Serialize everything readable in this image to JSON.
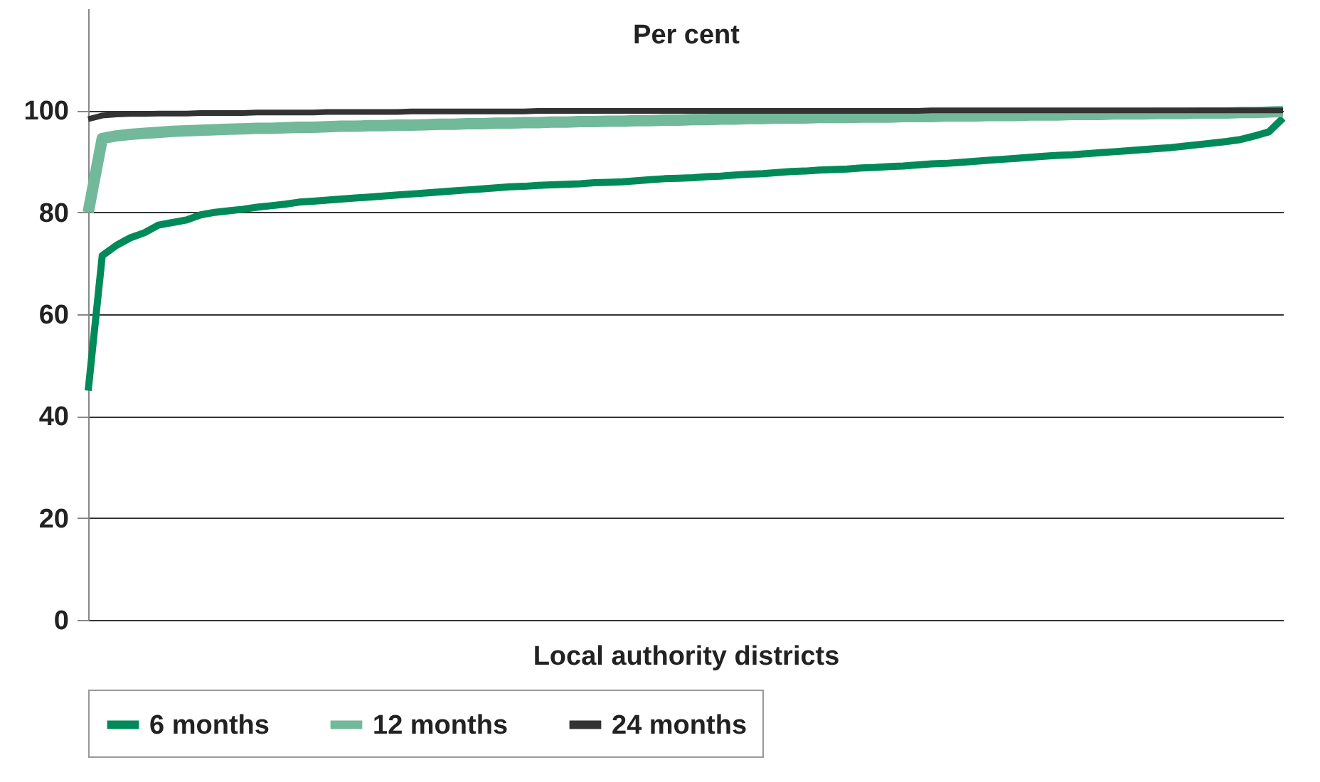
{
  "chart_data": {
    "type": "line",
    "ylabel": "Per cent",
    "xlabel": "Local authority districts",
    "categories": [
      null,
      null,
      null,
      null,
      null,
      null,
      null,
      null,
      null,
      null,
      null,
      null,
      null,
      null,
      null,
      null,
      null,
      null,
      null,
      null,
      null,
      null,
      null,
      null,
      null,
      null,
      null,
      null,
      null,
      null,
      null,
      null,
      null,
      null,
      null,
      null,
      null,
      null,
      null,
      null,
      null,
      null,
      null,
      null,
      null,
      null,
      null,
      null,
      null,
      null,
      null,
      null,
      null,
      null,
      null,
      null,
      null,
      null,
      null,
      null,
      null,
      null,
      null,
      null,
      null,
      null,
      null,
      null,
      null,
      null,
      null,
      null,
      null,
      null,
      null,
      null,
      null,
      null,
      null,
      null,
      null,
      null,
      null,
      null,
      null,
      null
    ],
    "series": [
      {
        "name": "6 months",
        "color": "#008a5a",
        "values": [
          45,
          71.5,
          73.5,
          75,
          76,
          77.5,
          78,
          78.5,
          79.5,
          80,
          80.3,
          80.6,
          81,
          81.3,
          81.6,
          82,
          82.2,
          82.4,
          82.6,
          82.8,
          83,
          83.2,
          83.4,
          83.6,
          83.8,
          84,
          84.2,
          84.4,
          84.6,
          84.8,
          85,
          85.1,
          85.3,
          85.4,
          85.5,
          85.6,
          85.8,
          85.9,
          86,
          86.2,
          86.4,
          86.6,
          86.7,
          86.8,
          87,
          87.1,
          87.3,
          87.5,
          87.6,
          87.8,
          88,
          88.1,
          88.3,
          88.4,
          88.5,
          88.7,
          88.8,
          89,
          89.1,
          89.3,
          89.5,
          89.6,
          89.8,
          90,
          90.2,
          90.4,
          90.6,
          90.8,
          91,
          91.2,
          91.3,
          91.5,
          91.7,
          91.9,
          92.1,
          92.3,
          92.5,
          92.7,
          93,
          93.3,
          93.6,
          93.9,
          94.3,
          95,
          95.8,
          98.5
        ]
      },
      {
        "name": "12 months",
        "color": "#72b89a",
        "values": [
          80,
          94.5,
          95,
          95.3,
          95.5,
          95.7,
          95.9,
          96,
          96.1,
          96.2,
          96.3,
          96.4,
          96.5,
          96.5,
          96.6,
          96.7,
          96.7,
          96.8,
          96.9,
          96.9,
          97,
          97,
          97.1,
          97.1,
          97.2,
          97.3,
          97.3,
          97.4,
          97.4,
          97.5,
          97.5,
          97.6,
          97.6,
          97.7,
          97.7,
          97.8,
          97.8,
          97.9,
          97.9,
          98,
          98,
          98.1,
          98.1,
          98.2,
          98.2,
          98.3,
          98.3,
          98.4,
          98.4,
          98.5,
          98.5,
          98.5,
          98.6,
          98.6,
          98.6,
          98.7,
          98.7,
          98.7,
          98.8,
          98.8,
          98.8,
          98.9,
          98.9,
          98.9,
          99,
          99,
          99,
          99.1,
          99.1,
          99.1,
          99.2,
          99.2,
          99.2,
          99.3,
          99.3,
          99.3,
          99.4,
          99.4,
          99.4,
          99.5,
          99.5,
          99.5,
          99.6,
          99.6,
          99.7,
          99.8
        ]
      },
      {
        "name": "24 months",
        "color": "#333333",
        "values": [
          98.3,
          99,
          99.2,
          99.3,
          99.3,
          99.4,
          99.4,
          99.4,
          99.5,
          99.5,
          99.5,
          99.5,
          99.6,
          99.6,
          99.6,
          99.6,
          99.6,
          99.7,
          99.7,
          99.7,
          99.7,
          99.7,
          99.7,
          99.8,
          99.8,
          99.8,
          99.8,
          99.8,
          99.8,
          99.8,
          99.8,
          99.8,
          99.9,
          99.9,
          99.9,
          99.9,
          99.9,
          99.9,
          99.9,
          99.9,
          99.9,
          99.9,
          99.9,
          99.9,
          99.9,
          99.9,
          99.9,
          99.9,
          99.9,
          99.9,
          99.9,
          99.9,
          99.9,
          99.9,
          99.9,
          99.9,
          99.9,
          99.9,
          99.9,
          99.9,
          100,
          100,
          100,
          100,
          100,
          100,
          100,
          100,
          100,
          100,
          100,
          100,
          100,
          100,
          100,
          100,
          100,
          100,
          100,
          100,
          100,
          100,
          100,
          100,
          100,
          100
        ]
      }
    ],
    "ylim": [
      0,
      120
    ],
    "yticks": [
      0,
      20,
      40,
      60,
      80,
      100
    ],
    "grid": "y",
    "legend": "bottom",
    "tick_labels": "y",
    "marker": "none",
    "line_style": "solid"
  }
}
